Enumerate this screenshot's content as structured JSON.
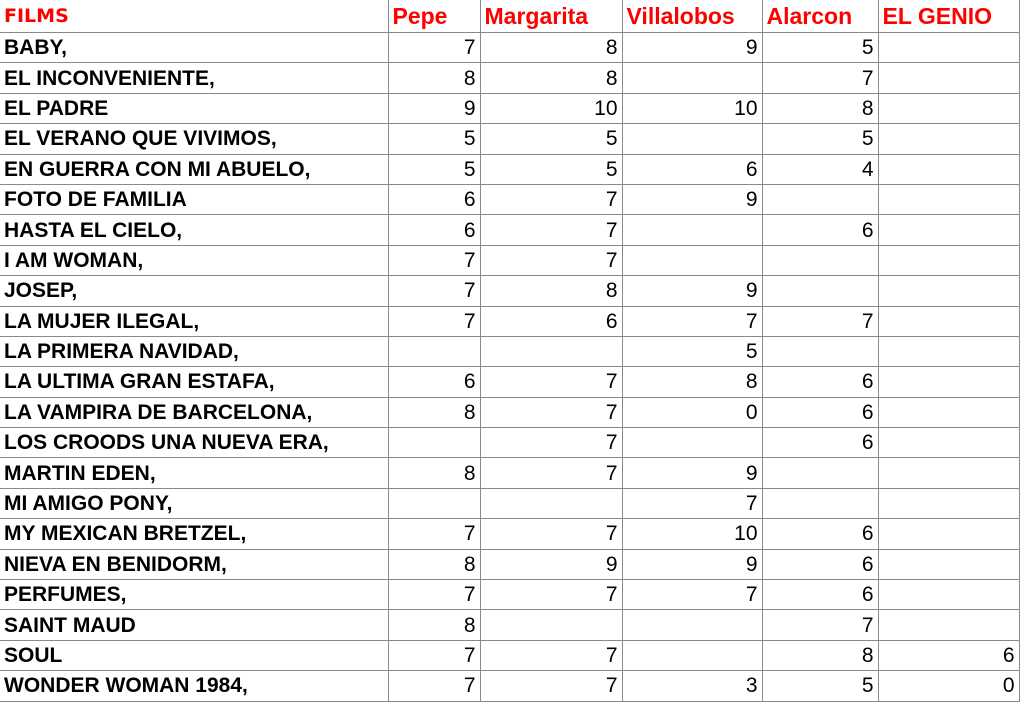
{
  "headers": [
    "FILMS",
    "Pepe",
    "Margarita",
    "Villalobos",
    "Alarcon",
    "EL GENIO"
  ],
  "rows": [
    {
      "film": "BABY,",
      "scores": [
        "7",
        "8",
        "9",
        "5",
        ""
      ]
    },
    {
      "film": "EL INCONVENIENTE,",
      "scores": [
        "8",
        "8",
        "",
        "7",
        ""
      ]
    },
    {
      "film": "EL PADRE",
      "scores": [
        "9",
        "10",
        "10",
        "8",
        ""
      ]
    },
    {
      "film": "EL VERANO QUE VIVIMOS,",
      "scores": [
        "5",
        "5",
        "",
        "5",
        ""
      ]
    },
    {
      "film": "EN GUERRA CON MI ABUELO,",
      "scores": [
        "5",
        "5",
        "6",
        "4",
        ""
      ]
    },
    {
      "film": "FOTO DE FAMILIA",
      "scores": [
        "6",
        "7",
        "9",
        "",
        ""
      ]
    },
    {
      "film": "HASTA EL CIELO,",
      "scores": [
        "6",
        "7",
        "",
        "6",
        ""
      ]
    },
    {
      "film": "I AM WOMAN,",
      "scores": [
        "7",
        "7",
        "",
        "",
        ""
      ]
    },
    {
      "film": "JOSEP,",
      "scores": [
        "7",
        "8",
        "9",
        "",
        ""
      ]
    },
    {
      "film": "LA MUJER ILEGAL,",
      "scores": [
        "7",
        "6",
        "7",
        "7",
        ""
      ]
    },
    {
      "film": "LA PRIMERA NAVIDAD,",
      "scores": [
        "",
        "",
        "5",
        "",
        ""
      ]
    },
    {
      "film": "LA ULTIMA GRAN ESTAFA,",
      "scores": [
        "6",
        "7",
        "8",
        "6",
        ""
      ]
    },
    {
      "film": "LA VAMPIRA DE BARCELONA,",
      "scores": [
        "8",
        "7",
        "0",
        "6",
        ""
      ]
    },
    {
      "film": "LOS CROODS UNA NUEVA ERA,",
      "scores": [
        "",
        "7",
        "",
        "6",
        ""
      ]
    },
    {
      "film": "MARTIN EDEN,",
      "scores": [
        "8",
        "7",
        "9",
        "",
        ""
      ]
    },
    {
      "film": "MI AMIGO PONY,",
      "scores": [
        "",
        "",
        "7",
        "",
        ""
      ]
    },
    {
      "film": "MY MEXICAN BRETZEL,",
      "scores": [
        "7",
        "7",
        "10",
        "6",
        ""
      ]
    },
    {
      "film": "NIEVA EN BENIDORM,",
      "scores": [
        "8",
        "9",
        "9",
        "6",
        ""
      ]
    },
    {
      "film": "PERFUMES,",
      "scores": [
        "7",
        "7",
        "7",
        "6",
        ""
      ]
    },
    {
      "film": "SAINT MAUD",
      "scores": [
        "8",
        "",
        "",
        "7",
        ""
      ]
    },
    {
      "film": "SOUL",
      "scores": [
        "7",
        "7",
        "",
        "8",
        "6"
      ]
    },
    {
      "film": "WONDER WOMAN 1984,",
      "scores": [
        "7",
        "7",
        "3",
        "5",
        "0"
      ]
    }
  ],
  "colors": {
    "header": "#ff0000",
    "grid": "#8a8a8a"
  }
}
